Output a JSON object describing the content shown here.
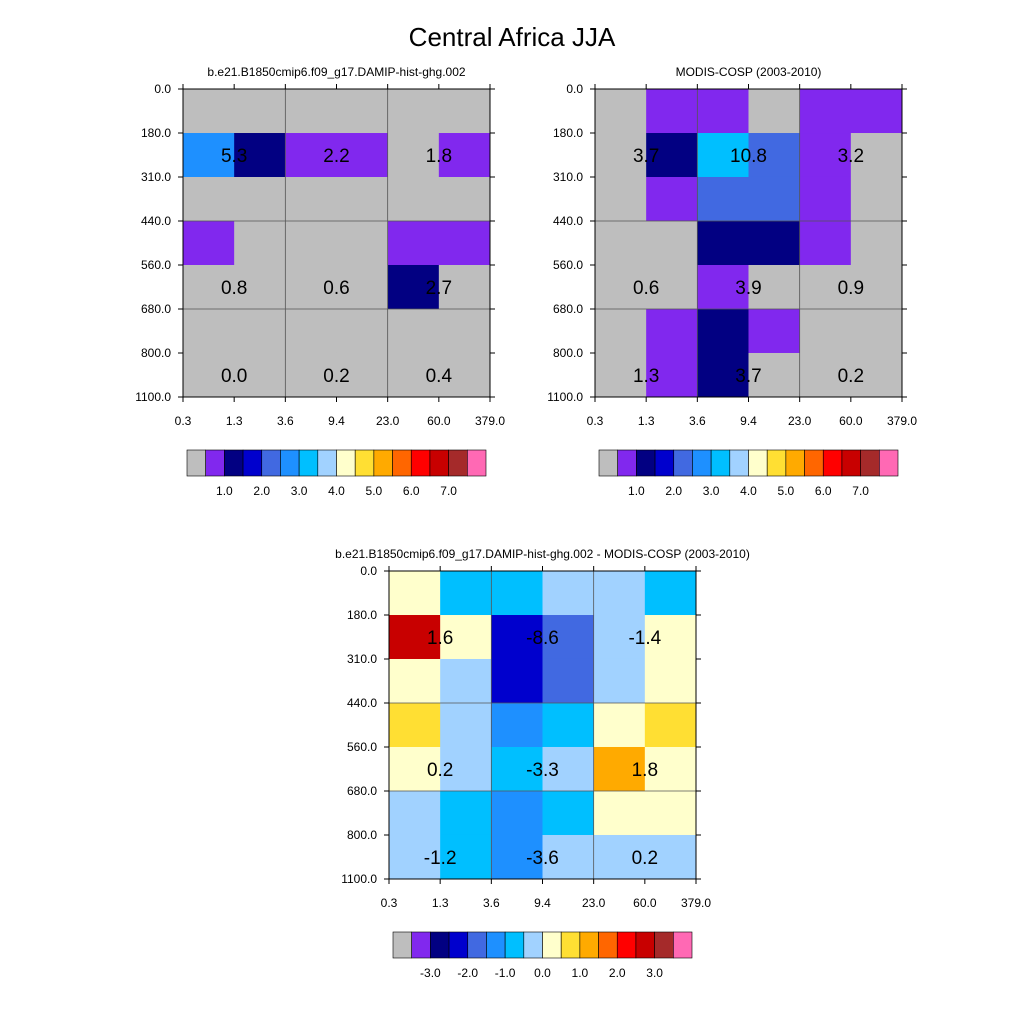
{
  "title": "Central Africa JJA",
  "palette_grey": "#bebebe",
  "value_colors": [
    "#bebebe",
    "#8128ee",
    "#020082",
    "#0000cd",
    "#4169e1",
    "#1e90ff",
    "#00bfff",
    "#a1d2ff",
    "#ffffcc",
    "#ffdf33",
    "#ffaa00",
    "#ff6600",
    "#ff0000",
    "#c80000",
    "#a52a2a",
    "#ff69b4"
  ],
  "x_ticks": [
    "0.3",
    "1.3",
    "3.6",
    "9.4",
    "23.0",
    "60.0",
    "379.0"
  ],
  "y_ticks": [
    "0.0",
    "180.0",
    "310.0",
    "440.0",
    "560.0",
    "680.0",
    "800.0",
    "1100.0"
  ],
  "chart_data": [
    {
      "type": "heatmap",
      "title": "b.e21.B1850cmip6.f09_g17.DAMIP-hist-ghg.002",
      "x_ticks": [
        "0.3",
        "1.3",
        "3.6",
        "9.4",
        "23.0",
        "60.0",
        "379.0"
      ],
      "y_ticks": [
        "0.0",
        "180.0",
        "310.0",
        "440.0",
        "560.0",
        "680.0",
        "800.0",
        "1100.0"
      ],
      "cells": [
        [
          0,
          0,
          0,
          0,
          0,
          0
        ],
        [
          5,
          2,
          1,
          1,
          0,
          1
        ],
        [
          0,
          0,
          0,
          0,
          0,
          0
        ],
        [
          1,
          0,
          0,
          0,
          1,
          1
        ],
        [
          0,
          0,
          0,
          0,
          2,
          0
        ],
        [
          0,
          0,
          0,
          0,
          0,
          0
        ],
        [
          0,
          0,
          0,
          0,
          0,
          0
        ]
      ],
      "labels": [
        {
          "text": "5.3",
          "col": 1,
          "row": 1
        },
        {
          "text": "2.2",
          "col": 3,
          "row": 1
        },
        {
          "text": "1.8",
          "col": 5,
          "row": 1
        },
        {
          "text": "0.8",
          "col": 1,
          "row": 4
        },
        {
          "text": "0.6",
          "col": 3,
          "row": 4
        },
        {
          "text": "2.7",
          "col": 5,
          "row": 4
        },
        {
          "text": "0.0",
          "col": 1,
          "row": 6
        },
        {
          "text": "0.2",
          "col": 3,
          "row": 6
        },
        {
          "text": "0.4",
          "col": 5,
          "row": 6
        }
      ],
      "colorbar": {
        "colors": [
          "#bebebe",
          "#8128ee",
          "#020082",
          "#0000cd",
          "#4169e1",
          "#1e90ff",
          "#00bfff",
          "#a1d2ff",
          "#ffffcc",
          "#ffdf33",
          "#ffaa00",
          "#ff6600",
          "#ff0000",
          "#c80000",
          "#a52a2a",
          "#ff69b4"
        ],
        "labels": [
          "1.0",
          "2.0",
          "3.0",
          "4.0",
          "5.0",
          "6.0",
          "7.0"
        ]
      }
    },
    {
      "type": "heatmap",
      "title": "MODIS-COSP (2003-2010)",
      "x_ticks": [
        "0.3",
        "1.3",
        "3.6",
        "9.4",
        "23.0",
        "60.0",
        "379.0"
      ],
      "y_ticks": [
        "0.0",
        "180.0",
        "310.0",
        "440.0",
        "560.0",
        "680.0",
        "800.0",
        "1100.0"
      ],
      "cells": [
        [
          0,
          1,
          1,
          0,
          1,
          1
        ],
        [
          0,
          2,
          6,
          4,
          1,
          0
        ],
        [
          0,
          1,
          4,
          4,
          1,
          0
        ],
        [
          0,
          0,
          2,
          2,
          1,
          0
        ],
        [
          0,
          0,
          1,
          0,
          0,
          0
        ],
        [
          0,
          1,
          2,
          1,
          0,
          0
        ],
        [
          0,
          1,
          2,
          0,
          0,
          0
        ]
      ],
      "labels": [
        {
          "text": "3.7",
          "col": 1,
          "row": 1
        },
        {
          "text": "10.8",
          "col": 3,
          "row": 1
        },
        {
          "text": "3.2",
          "col": 5,
          "row": 1
        },
        {
          "text": "0.6",
          "col": 1,
          "row": 4
        },
        {
          "text": "3.9",
          "col": 3,
          "row": 4
        },
        {
          "text": "0.9",
          "col": 5,
          "row": 4
        },
        {
          "text": "1.3",
          "col": 1,
          "row": 6
        },
        {
          "text": "3.7",
          "col": 3,
          "row": 6
        },
        {
          "text": "0.2",
          "col": 5,
          "row": 6
        }
      ],
      "colorbar": {
        "colors": [
          "#bebebe",
          "#8128ee",
          "#020082",
          "#0000cd",
          "#4169e1",
          "#1e90ff",
          "#00bfff",
          "#a1d2ff",
          "#ffffcc",
          "#ffdf33",
          "#ffaa00",
          "#ff6600",
          "#ff0000",
          "#c80000",
          "#a52a2a",
          "#ff69b4"
        ],
        "labels": [
          "1.0",
          "2.0",
          "3.0",
          "4.0",
          "5.0",
          "6.0",
          "7.0"
        ]
      }
    },
    {
      "type": "heatmap",
      "title": "b.e21.B1850cmip6.f09_g17.DAMIP-hist-ghg.002 - MODIS-COSP (2003-2010)",
      "x_ticks": [
        "0.3",
        "1.3",
        "3.6",
        "9.4",
        "23.0",
        "60.0",
        "379.0"
      ],
      "y_ticks": [
        "0.0",
        "180.0",
        "310.0",
        "440.0",
        "560.0",
        "680.0",
        "800.0",
        "1100.0"
      ],
      "cells": [
        [
          8,
          6,
          6,
          7,
          7,
          6
        ],
        [
          13,
          8,
          3,
          4,
          7,
          8
        ],
        [
          8,
          7,
          3,
          4,
          7,
          8
        ],
        [
          9,
          7,
          5,
          6,
          8,
          9
        ],
        [
          8,
          7,
          6,
          7,
          10,
          8
        ],
        [
          7,
          6,
          5,
          6,
          8,
          8
        ],
        [
          7,
          6,
          5,
          7,
          7,
          7
        ]
      ],
      "labels": [
        {
          "text": "1.6",
          "col": 1,
          "row": 1
        },
        {
          "text": "-8.6",
          "col": 3,
          "row": 1
        },
        {
          "text": "-1.4",
          "col": 5,
          "row": 1
        },
        {
          "text": "0.2",
          "col": 1,
          "row": 4
        },
        {
          "text": "-3.3",
          "col": 3,
          "row": 4
        },
        {
          "text": "1.8",
          "col": 5,
          "row": 4
        },
        {
          "text": "-1.2",
          "col": 1,
          "row": 6
        },
        {
          "text": "-3.6",
          "col": 3,
          "row": 6
        },
        {
          "text": "0.2",
          "col": 5,
          "row": 6
        }
      ],
      "colorbar": {
        "colors": [
          "#bebebe",
          "#8128ee",
          "#020082",
          "#0000cd",
          "#4169e1",
          "#1e90ff",
          "#00bfff",
          "#a1d2ff",
          "#ffffcc",
          "#ffdf33",
          "#ffaa00",
          "#ff6600",
          "#ff0000",
          "#c80000",
          "#a52a2a",
          "#ff69b4"
        ],
        "labels": [
          "-3.0",
          "-2.0",
          "-1.0",
          "0.0",
          "1.0",
          "2.0",
          "3.0"
        ]
      }
    }
  ]
}
